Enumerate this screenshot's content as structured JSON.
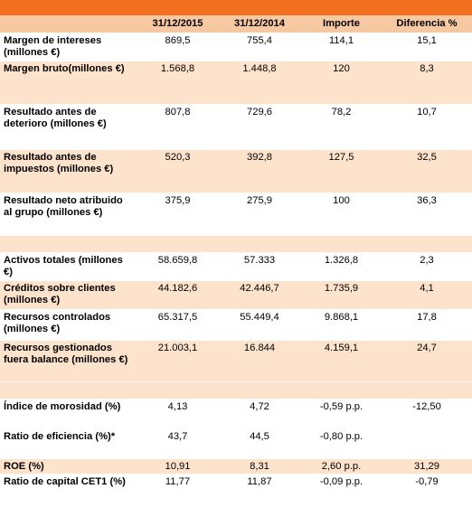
{
  "columns": [
    "",
    "31/12/2015",
    "31/12/2014",
    "Importe",
    "Diferencia %"
  ],
  "rows": [
    {
      "label": "Margen de intereses (millones  €)",
      "v2015": "869,5",
      "v2014": "755,4",
      "importe": "114,1",
      "diferencia": "15,1"
    },
    {
      "label": "Margen bruto(millones  €)",
      "v2015": "1.568,8",
      "v2014": "1.448,8",
      "importe": "120",
      "diferencia": "8,3"
    },
    {
      "label": "Resultado antes de deterioro (millones €)",
      "v2015": "807,8",
      "v2014": "729,6",
      "importe": "78,2",
      "diferencia": "10,7"
    },
    {
      "label": "Resultado antes de impuestos (millones €)",
      "v2015": "520,3",
      "v2014": "392,8",
      "importe": "127,5",
      "diferencia": "32,5"
    },
    {
      "label": "Resultado neto atribuido al grupo (millones €)",
      "v2015": "375,9",
      "v2014": "275,9",
      "importe": "100",
      "diferencia": "36,3"
    },
    {
      "label": "Activos totales (millones  €)",
      "v2015": "58.659,8",
      "v2014": "57.333",
      "importe": "1.326,8",
      "diferencia": "2,3"
    },
    {
      "label": "Créditos sobre clientes (millones €)",
      "v2015": "44.182,6",
      "v2014": "42.446,7",
      "importe": "1.735,9",
      "diferencia": "4,1"
    },
    {
      "label": "Recursos controlados (millones €)",
      "v2015": "65.317,5",
      "v2014": "55.449,4",
      "importe": "9.868,1",
      "diferencia": "17,8"
    },
    {
      "label": "Recursos gestionados fuera balance (millones  €)",
      "v2015": "21.003,1",
      "v2014": "16.844",
      "importe": "4.159,1",
      "diferencia": "24,7"
    },
    {
      "label": "Índice de morosidad (%)",
      "v2015": "4,13",
      "v2014": "4,72",
      "importe": "-0,59 p.p.",
      "diferencia": "-12,50"
    },
    {
      "label": "Ratio de eficiencia (%)*",
      "v2015": "43,7",
      "v2014": "44,5",
      "importe": "-0,80 p.p.",
      "diferencia": ""
    },
    {
      "label": "ROE (%)",
      "v2015": "10,91",
      "v2014": "8,31",
      "importe": "2,60 p.p.",
      "diferencia": "31,29"
    },
    {
      "label": "Ratio de capital CET1 (%)",
      "v2015": "11,77",
      "v2014": "11,87",
      "importe": "-0,09 p.p.",
      "diferencia": "-0,79"
    }
  ]
}
